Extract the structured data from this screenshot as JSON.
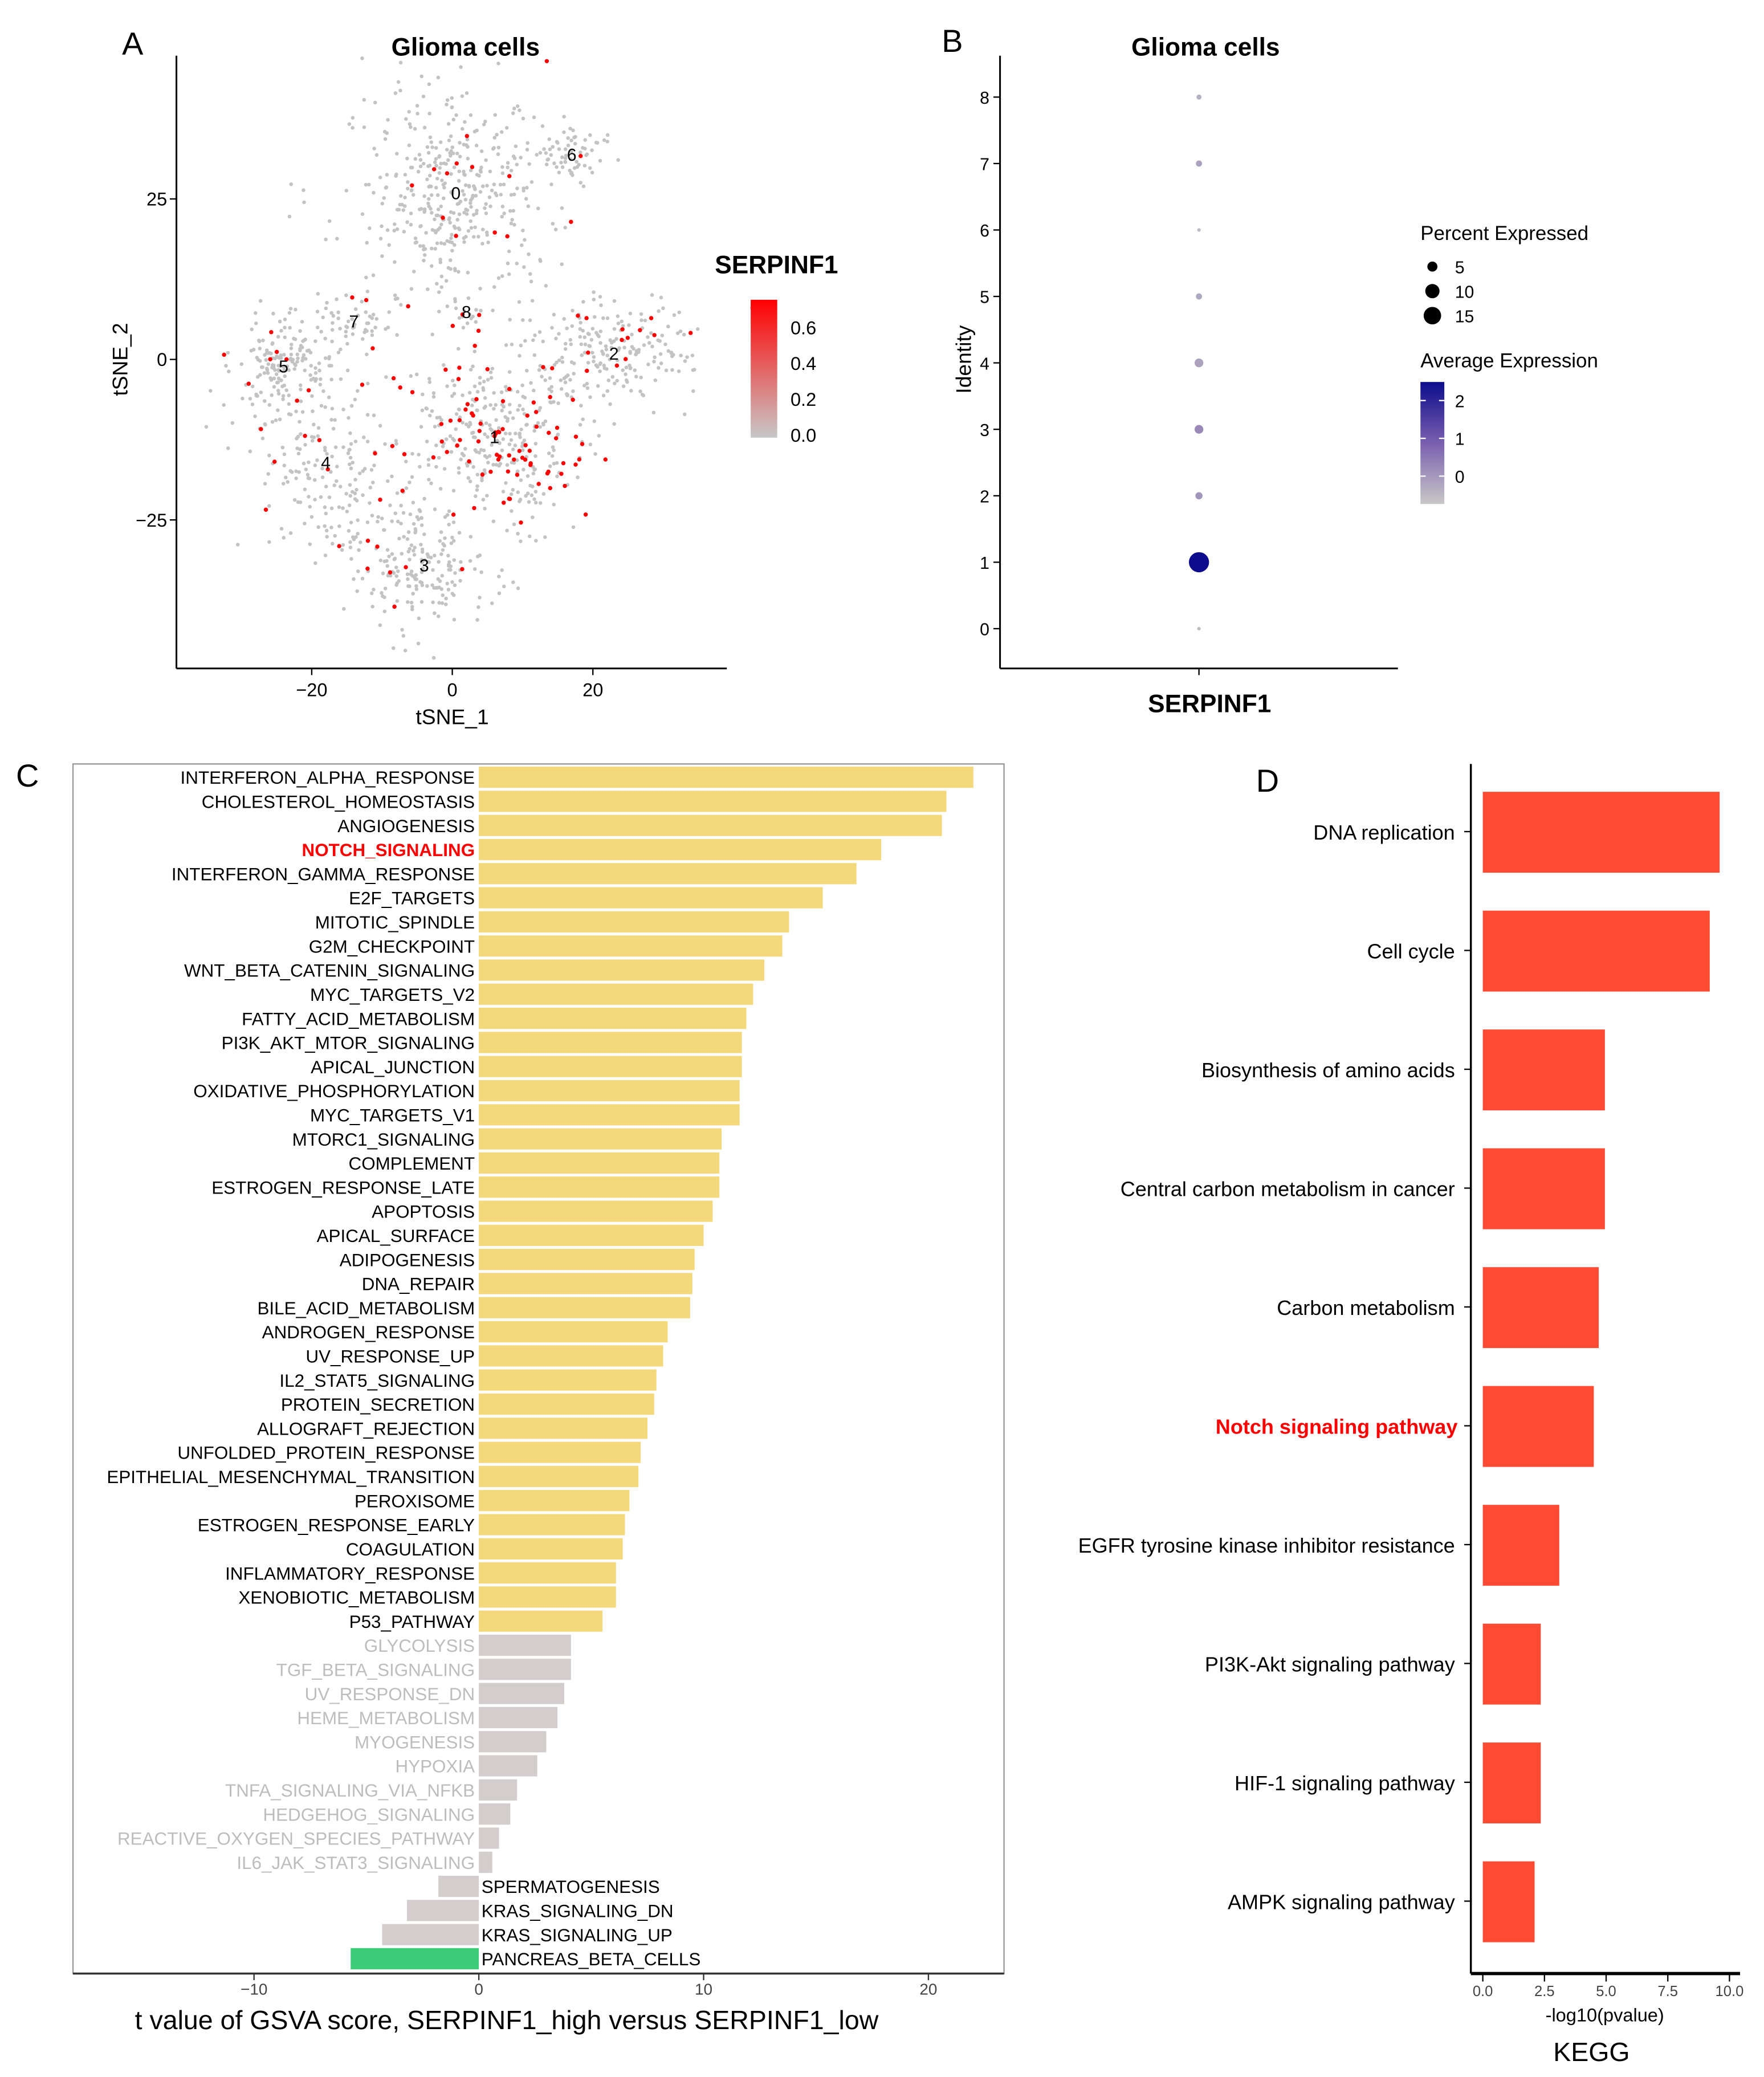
{
  "panels": {
    "a": "A",
    "b": "B",
    "c": "C",
    "d": "D"
  },
  "chart_data": [
    {
      "type": "scatter",
      "title": "Glioma cells",
      "xlabel": "tSNE_1",
      "ylabel": "tSNE_2",
      "xticks": [
        -20,
        0,
        20
      ],
      "yticks": [
        -25,
        0,
        25
      ],
      "xlim": [
        -37,
        39
      ],
      "ylim": [
        -48,
        48
      ],
      "legend": {
        "title": "SERPINF1",
        "ticks": [
          "0.0",
          "0.2",
          "0.4",
          "0.6"
        ],
        "range": [
          0,
          0.7
        ],
        "low_color": "#C8C8C8",
        "high_color": "#FF0000",
        "placement": "right"
      },
      "clusters": [
        {
          "label": "0",
          "cx": 0.5,
          "cy": 26,
          "sx": 7,
          "sy": 8,
          "n": 420,
          "red": 0.03
        },
        {
          "label": "1",
          "cx": 6,
          "cy": -12,
          "sx": 6,
          "sy": 7,
          "n": 360,
          "red": 0.25
        },
        {
          "label": "2",
          "cx": 23,
          "cy": 1,
          "sx": 6,
          "sy": 4,
          "n": 220,
          "red": 0.05
        },
        {
          "label": "3",
          "cx": -4,
          "cy": -32,
          "sx": 5,
          "sy": 5,
          "n": 200,
          "red": 0.04
        },
        {
          "label": "4",
          "cx": -18,
          "cy": -16,
          "sx": 5,
          "sy": 7,
          "n": 200,
          "red": 0.04
        },
        {
          "label": "5",
          "cx": -24,
          "cy": -1,
          "sx": 4,
          "sy": 4,
          "n": 170,
          "red": 0.05
        },
        {
          "label": "6",
          "cx": 17,
          "cy": 32,
          "sx": 2.5,
          "sy": 2,
          "n": 60,
          "red": 0.03
        },
        {
          "label": "7",
          "cx": -14,
          "cy": 6,
          "sx": 3,
          "sy": 2,
          "n": 50,
          "red": 0.05
        },
        {
          "label": "8",
          "cx": 2,
          "cy": 7.5,
          "sx": 1.5,
          "sy": 1.5,
          "n": 15,
          "red": 0.2
        }
      ]
    },
    {
      "type": "scatter",
      "subtype": "dotplot",
      "title": "Glioma cells",
      "xlabel": "SERPINF1",
      "ylabel": "Identity",
      "identities": [
        0,
        1,
        2,
        3,
        4,
        5,
        6,
        7,
        8
      ],
      "percent_expressed": [
        0.5,
        16,
        2,
        3,
        3,
        1.5,
        0.5,
        1.5,
        1
      ],
      "average_expression": [
        -0.6,
        2.5,
        0,
        0.2,
        -0.2,
        -0.3,
        -0.6,
        -0.2,
        -0.4
      ],
      "size_legend": {
        "title": "Percent Expressed",
        "values": [
          "5",
          "10",
          "15"
        ]
      },
      "color_legend": {
        "title": "Average Expression",
        "ticks": [
          "2",
          "1",
          "0"
        ],
        "low_color": "#C8C8C8",
        "high_color": "#0C0C8C"
      }
    },
    {
      "type": "bar",
      "orientation": "horizontal",
      "xlabel": "t value of GSVA score, SERPINF1_high versus SERPINF1_low",
      "xticks": [
        "-10",
        "0",
        "10",
        "20"
      ],
      "xlim": [
        -18,
        23.5
      ],
      "colors": {
        "up": "#F3D97C",
        "ns": "#D3CDCD",
        "down": "#3CCB77",
        "ns_label": "#BDBDBD",
        "highlight": "#FF0000"
      },
      "bars": [
        [
          "INTERFERON_ALPHA_RESPONSE",
          22.0,
          "up"
        ],
        [
          "CHOLESTEROL_HOMEOSTASIS",
          20.8,
          "up"
        ],
        [
          "ANGIOGENESIS",
          20.6,
          "up"
        ],
        [
          "NOTCH_SIGNALING",
          17.9,
          "highlight"
        ],
        [
          "INTERFERON_GAMMA_RESPONSE",
          16.8,
          "up"
        ],
        [
          "E2F_TARGETS",
          15.3,
          "up"
        ],
        [
          "MITOTIC_SPINDLE",
          13.8,
          "up"
        ],
        [
          "G2M_CHECKPOINT",
          13.5,
          "up"
        ],
        [
          "WNT_BETA_CATENIN_SIGNALING",
          12.7,
          "up"
        ],
        [
          "MYC_TARGETS_V2",
          12.2,
          "up"
        ],
        [
          "FATTY_ACID_METABOLISM",
          11.9,
          "up"
        ],
        [
          "PI3K_AKT_MTOR_SIGNALING",
          11.7,
          "up"
        ],
        [
          "APICAL_JUNCTION",
          11.7,
          "up"
        ],
        [
          "OXIDATIVE_PHOSPHORYLATION",
          11.6,
          "up"
        ],
        [
          "MYC_TARGETS_V1",
          11.6,
          "up"
        ],
        [
          "MTORC1_SIGNALING",
          10.8,
          "up"
        ],
        [
          "COMPLEMENT",
          10.7,
          "up"
        ],
        [
          "ESTROGEN_RESPONSE_LATE",
          10.7,
          "up"
        ],
        [
          "APOPTOSIS",
          10.4,
          "up"
        ],
        [
          "APICAL_SURFACE",
          10.0,
          "up"
        ],
        [
          "ADIPOGENESIS",
          9.6,
          "up"
        ],
        [
          "DNA_REPAIR",
          9.5,
          "up"
        ],
        [
          "BILE_ACID_METABOLISM",
          9.4,
          "up"
        ],
        [
          "ANDROGEN_RESPONSE",
          8.4,
          "up"
        ],
        [
          "UV_RESPONSE_UP",
          8.2,
          "up"
        ],
        [
          "IL2_STAT5_SIGNALING",
          7.9,
          "up"
        ],
        [
          "PROTEIN_SECRETION",
          7.8,
          "up"
        ],
        [
          "ALLOGRAFT_REJECTION",
          7.5,
          "up"
        ],
        [
          "UNFOLDED_PROTEIN_RESPONSE",
          7.2,
          "up"
        ],
        [
          "EPITHELIAL_MESENCHYMAL_TRANSITION",
          7.1,
          "up"
        ],
        [
          "PEROXISOME",
          6.7,
          "up"
        ],
        [
          "ESTROGEN_RESPONSE_EARLY",
          6.5,
          "up"
        ],
        [
          "COAGULATION",
          6.4,
          "up"
        ],
        [
          "INFLAMMATORY_RESPONSE",
          6.1,
          "up"
        ],
        [
          "XENOBIOTIC_METABOLISM",
          6.1,
          "up"
        ],
        [
          "P53_PATHWAY",
          5.5,
          "up"
        ],
        [
          "GLYCOLYSIS",
          4.1,
          "ns"
        ],
        [
          "TGF_BETA_SIGNALING",
          4.1,
          "ns"
        ],
        [
          "UV_RESPONSE_DN",
          3.8,
          "ns"
        ],
        [
          "HEME_METABOLISM",
          3.5,
          "ns"
        ],
        [
          "MYOGENESIS",
          3.0,
          "ns"
        ],
        [
          "HYPOXIA",
          2.6,
          "ns"
        ],
        [
          "TNFA_SIGNALING_VIA_NFKB",
          1.7,
          "ns"
        ],
        [
          "HEDGEHOG_SIGNALING",
          1.4,
          "ns"
        ],
        [
          "REACTIVE_OXYGEN_SPECIES_PATHWAY",
          0.9,
          "ns"
        ],
        [
          "IL6_JAK_STAT3_SIGNALING",
          0.6,
          "ns"
        ],
        [
          "SPERMATOGENESIS",
          -1.8,
          "ns"
        ],
        [
          "KRAS_SIGNALING_DN",
          -3.2,
          "ns"
        ],
        [
          "KRAS_SIGNALING_UP",
          -4.3,
          "ns"
        ],
        [
          "PANCREAS_BETA_CELLS",
          -5.7,
          "down"
        ]
      ]
    },
    {
      "type": "bar",
      "orientation": "horizontal",
      "title": "KEGG",
      "xlabel": "-log10(pvalue)",
      "xticks": [
        "0.0",
        "2.5",
        "5.0",
        "7.5",
        "10.0"
      ],
      "xlim": [
        -0.5,
        10.4
      ],
      "color": "#FF4B33",
      "categories": [
        "DNA replication",
        "Cell cycle",
        "Biosynthesis of amino acids",
        "Central carbon metabolism in cancer",
        "Carbon metabolism",
        "Notch signaling pathway",
        "EGFR tyrosine kinase inhibitor resistance",
        "PI3K-Akt signaling pathway",
        "HIF-1 signaling pathway",
        "AMPK signaling pathway"
      ],
      "values": [
        9.6,
        9.2,
        4.95,
        4.95,
        4.7,
        4.5,
        3.1,
        2.35,
        2.35,
        2.1
      ],
      "highlight": "Notch signaling pathway"
    }
  ]
}
